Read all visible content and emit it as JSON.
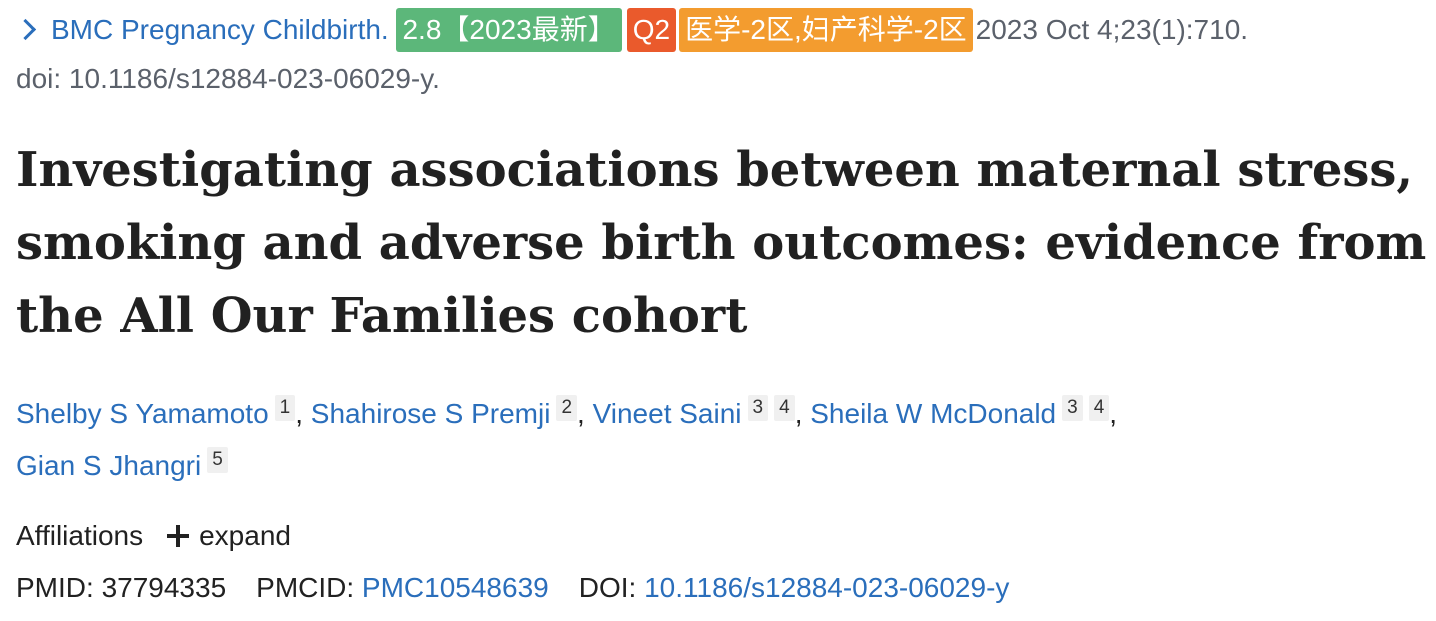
{
  "journal": {
    "name": "BMC Pregnancy Childbirth.",
    "badges": {
      "impact": "2.8【2023最新】",
      "quartile": "Q2",
      "zone": "医学-2区,妇产科学-2区"
    },
    "citation": "2023 Oct 4;23(1):710.",
    "doi_line": "doi: 10.1186/s12884-023-06029-y."
  },
  "title": "Investigating associations between maternal stress, smoking and adverse birth outcomes: evidence from the All Our Families cohort",
  "authors": [
    {
      "name": "Shelby S Yamamoto",
      "affs": [
        "1"
      ],
      "sep": ", "
    },
    {
      "name": "Shahirose S Premji",
      "affs": [
        "2"
      ],
      "sep": ", "
    },
    {
      "name": "Vineet Saini",
      "affs": [
        "3",
        "4"
      ],
      "sep": ", "
    },
    {
      "name": "Sheila W McDonald",
      "affs": [
        "3",
        "4"
      ],
      "sep": ","
    },
    {
      "name": "Gian S Jhangri",
      "affs": [
        "5"
      ],
      "sep": ""
    }
  ],
  "affiliations": {
    "label": "Affiliations",
    "expand_label": "expand"
  },
  "ids": {
    "pmid_label": "PMID:",
    "pmid": "37794335",
    "pmcid_label": "PMCID:",
    "pmcid": "PMC10548639",
    "doi_label": "DOI:",
    "doi": "10.1186/s12884-023-06029-y"
  },
  "colors": {
    "link": "#2a6ebb",
    "badge_green": "#5cb77a",
    "badge_red": "#ea5a2c",
    "badge_orange": "#f39c2f"
  },
  "icons": {
    "journal": "chevron-right-icon",
    "expand": "plus-icon"
  }
}
